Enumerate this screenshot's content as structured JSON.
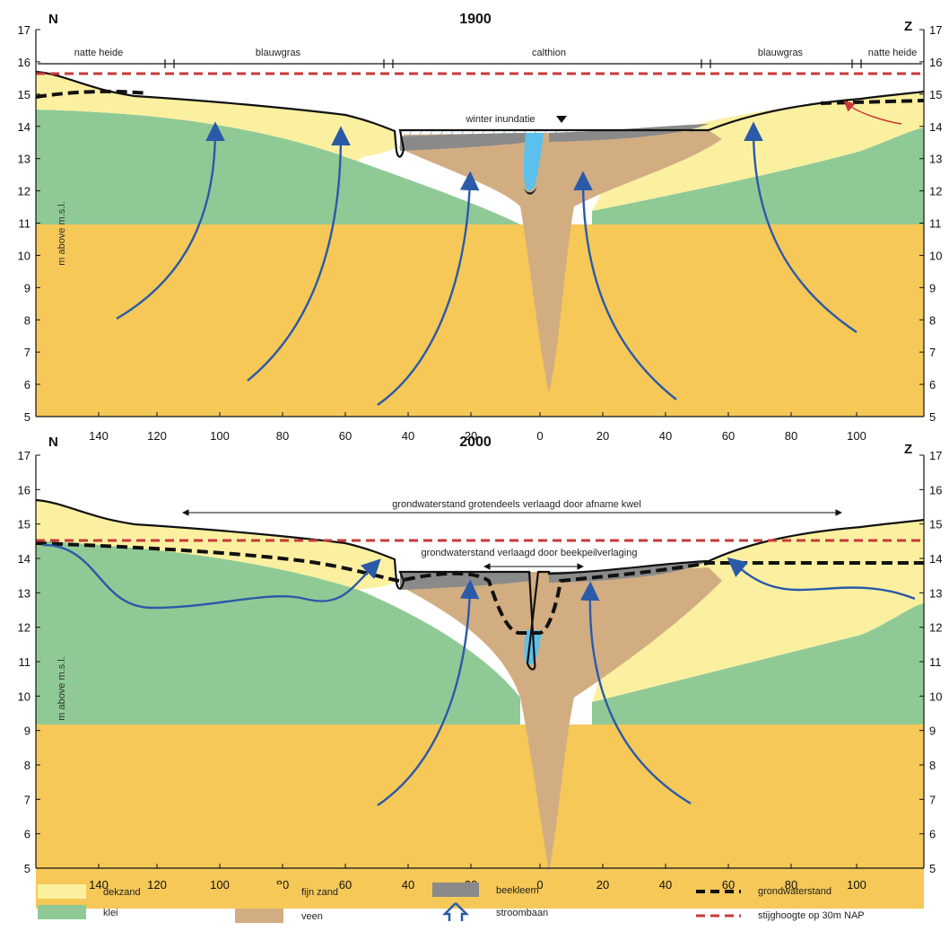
{
  "colors": {
    "dekzand": "#fbf0a0",
    "fijn_zand": "#f5c858",
    "klei": "#8fca96",
    "veen": "#d2ad82",
    "beekleem": "#8a8a8a",
    "water": "#5cc0ec",
    "groundwater_line": "#111111",
    "stijghoogte_line": "#c83a3a",
    "flow_arrow": "#2a5aa8"
  },
  "panels": [
    {
      "title": "1900",
      "north": "N",
      "south": "Z",
      "y_axis_label": "m above m.s.l.",
      "y_ticks": [
        "17",
        "16",
        "15",
        "14",
        "13",
        "12",
        "11",
        "10",
        "9",
        "8",
        "7",
        "6",
        "5"
      ],
      "x_ticks": [
        "140",
        "120",
        "100",
        "80",
        "60",
        "40",
        "20",
        "0",
        "20",
        "40",
        "60",
        "80",
        "100"
      ],
      "zones": [
        "natte heide",
        "blauwgras",
        "calthion",
        "blauwgras",
        "natte heide"
      ],
      "annotations": [
        "winter inundatie"
      ]
    },
    {
      "title": "2000",
      "north": "N",
      "south": "Z",
      "y_axis_label": "m above m.s.l.",
      "y_ticks": [
        "17",
        "16",
        "15",
        "14",
        "13",
        "12",
        "11",
        "10",
        "9",
        "8",
        "7",
        "6",
        "5"
      ],
      "x_ticks": [
        "140",
        "120",
        "100",
        "80",
        "60",
        "40",
        "20",
        "0",
        "20",
        "40",
        "60",
        "80",
        "100"
      ],
      "annotations": [
        "grondwaterstand grotendeels verlaagd door afname kwel",
        "grondwaterstand verlaagd door beekpeilverlaging"
      ]
    }
  ],
  "legend": {
    "dekzand": "dekzand",
    "klei": "klei",
    "fijn_zand": "fijn zand",
    "veen": "veen",
    "beekleem": "beekleem",
    "stroombaan": "stroombaan",
    "grondwaterstand": "grondwaterstand",
    "stijghoogte": "stijghoogte op 30m NAP"
  }
}
